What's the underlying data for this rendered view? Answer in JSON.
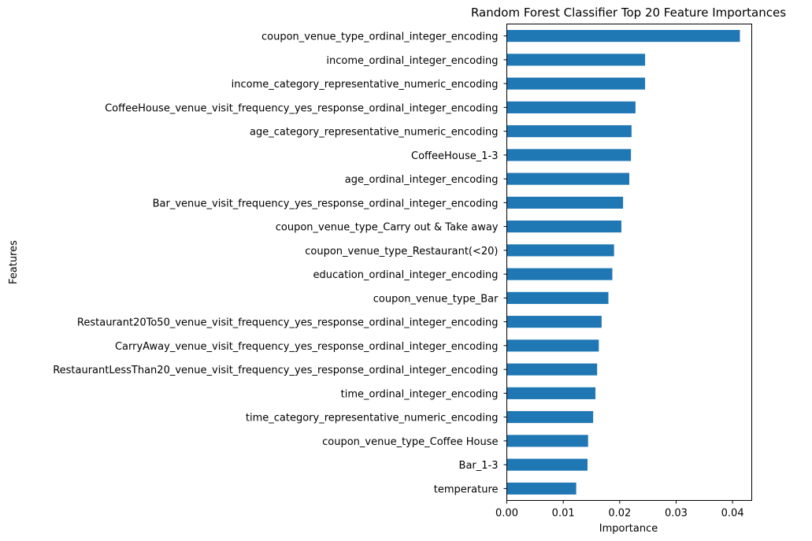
{
  "chart_data": {
    "type": "bar",
    "orientation": "horizontal",
    "title": "Random Forest Classifier Top 20 Feature Importances",
    "xlabel": "Importance",
    "ylabel": "Features",
    "xlim": [
      0,
      0.0434
    ],
    "xticks": [
      "0.00",
      "0.01",
      "0.02",
      "0.03",
      "0.04"
    ],
    "grid": false,
    "legend": "none",
    "bar_color": "#1f77b4",
    "categories": [
      "coupon_venue_type_ordinal_integer_encoding",
      "income_ordinal_integer_encoding",
      "income_category_representative_numeric_encoding",
      "CoffeeHouse_venue_visit_frequency_yes_response_ordinal_integer_encoding",
      "age_category_representative_numeric_encoding",
      "CoffeeHouse_1-3",
      "age_ordinal_integer_encoding",
      "Bar_venue_visit_frequency_yes_response_ordinal_integer_encoding",
      "coupon_venue_type_Carry out & Take away",
      "coupon_venue_type_Restaurant(<20)",
      "education_ordinal_integer_encoding",
      "coupon_venue_type_Bar",
      "Restaurant20To50_venue_visit_frequency_yes_response_ordinal_integer_encoding",
      "CarryAway_venue_visit_frequency_yes_response_ordinal_integer_encoding",
      "RestaurantLessThan20_venue_visit_frequency_yes_response_ordinal_integer_encoding",
      "time_ordinal_integer_encoding",
      "time_category_representative_numeric_encoding",
      "coupon_venue_type_Coffee House",
      "Bar_1-3",
      "temperature"
    ],
    "values": [
      0.0413,
      0.0245,
      0.0245,
      0.0228,
      0.0221,
      0.022,
      0.0217,
      0.0206,
      0.0203,
      0.019,
      0.0187,
      0.018,
      0.0168,
      0.0163,
      0.016,
      0.0157,
      0.0153,
      0.0144,
      0.0143,
      0.0123
    ]
  }
}
